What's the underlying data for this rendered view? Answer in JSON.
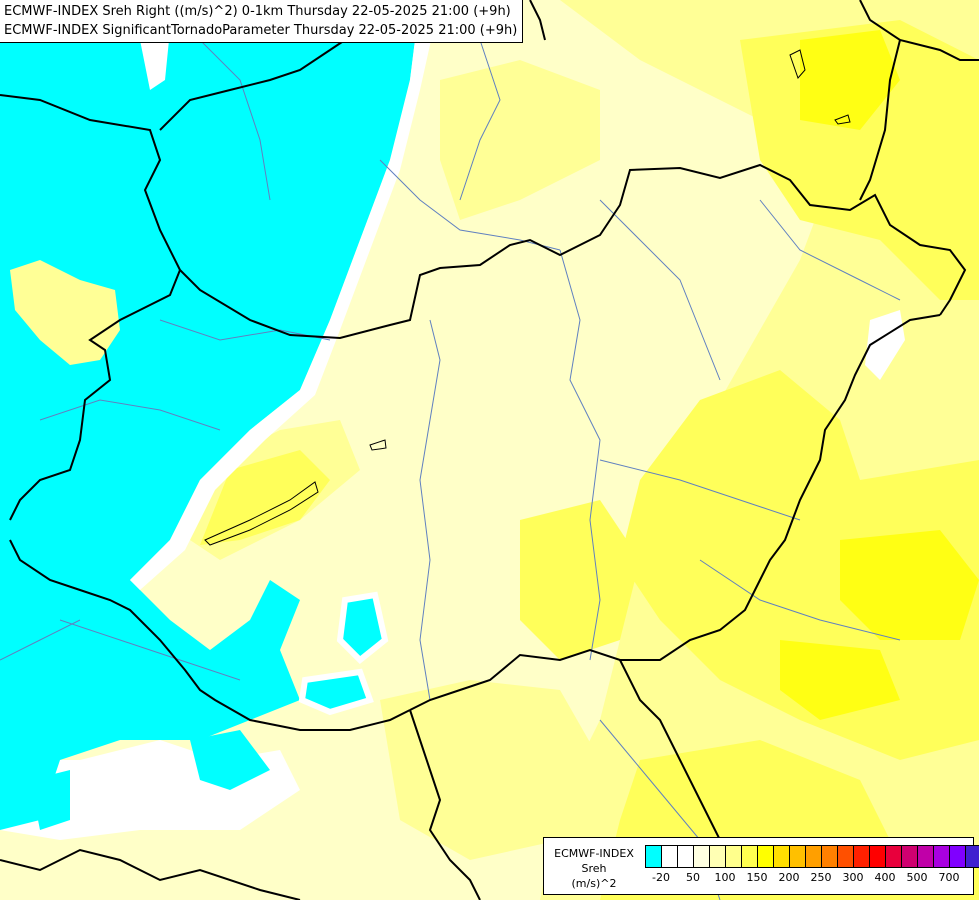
{
  "titles": {
    "line1": "ECMWF-INDEX Sreh Right ((m/s)^2) 0-1km Thursday 22-05-2025 21:00 (+9h)",
    "line2": "ECMWF-INDEX SignificantTornadoParameter Thursday 22-05-2025 21:00 (+9h)"
  },
  "legend": {
    "title_lines": [
      "ECMWF-INDEX",
      "Sreh",
      "(m/s)^2"
    ],
    "colors": [
      "#00ffff",
      "#ffffff",
      "#ffffff",
      "#ffffe1",
      "#ffffb4",
      "#ffff8c",
      "#ffff50",
      "#ffff00",
      "#ffdf00",
      "#ffc000",
      "#ff9f00",
      "#ff8000",
      "#ff5000",
      "#ff2000",
      "#ff0000",
      "#e8003c",
      "#d00070",
      "#c000a8",
      "#a800e0",
      "#8000ff",
      "#4020d0",
      "#2010a0",
      "#100070"
    ],
    "tick_labels": [
      "-20",
      "50",
      "100",
      "150",
      "200",
      "250",
      "300",
      "400",
      "500",
      "700"
    ]
  },
  "map_colors": {
    "background": "#ffffc8",
    "cyan": "#00ffff",
    "white": "#ffffff",
    "light_yellow": "#ffff96",
    "yellow": "#ffff5a",
    "bright_yellow": "#ffff14",
    "border": "#000000",
    "river": "#6080c0"
  }
}
